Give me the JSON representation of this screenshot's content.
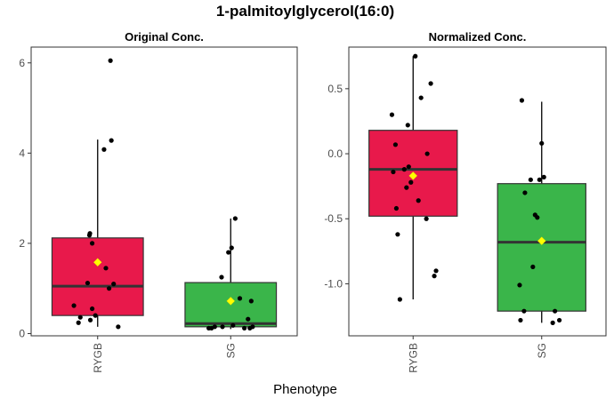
{
  "chart_data": {
    "type": "box",
    "title": "1-palmitoylglycerol(16:0)",
    "xlabel": "Phenotype",
    "colors": {
      "RYGB": "#E8194B",
      "SG": "#3AB54A",
      "mean_marker": "#FFFF00",
      "points": "#000000"
    },
    "panels": [
      {
        "title": "Original Conc.",
        "categories": [
          "RYGB",
          "SG"
        ],
        "ylim": [
          -0.05,
          6.35
        ],
        "yticks": [
          0,
          2,
          4,
          6
        ],
        "ytick_labels": [
          "0",
          "2",
          "4",
          "6"
        ],
        "boxes": [
          {
            "category": "RYGB",
            "q1": 0.4,
            "median": 1.05,
            "q3": 2.12,
            "whisker_low": 0.15,
            "whisker_high": 4.3,
            "mean": 1.58,
            "points": [
              [
                -0.52,
                0.62
              ],
              [
                -0.42,
                0.24
              ],
              [
                -0.38,
                0.36
              ],
              [
                -0.22,
                1.12
              ],
              [
                -0.16,
                0.3
              ],
              [
                -0.18,
                2.18
              ],
              [
                -0.17,
                2.22
              ],
              [
                -0.12,
                2.0
              ],
              [
                -0.12,
                0.55
              ],
              [
                -0.05,
                0.4
              ],
              [
                0.14,
                4.08
              ],
              [
                0.18,
                1.45
              ],
              [
                0.25,
                1.0
              ],
              [
                0.28,
                6.05
              ],
              [
                0.3,
                4.28
              ],
              [
                0.35,
                1.1
              ],
              [
                0.45,
                0.15
              ]
            ]
          },
          {
            "category": "SG",
            "q1": 0.15,
            "median": 0.22,
            "q3": 1.13,
            "whisker_low": 0.1,
            "whisker_high": 2.55,
            "mean": 0.72,
            "points": [
              [
                -0.48,
                0.12
              ],
              [
                -0.42,
                0.12
              ],
              [
                -0.35,
                0.15
              ],
              [
                -0.2,
                1.25
              ],
              [
                -0.18,
                0.15
              ],
              [
                -0.05,
                1.8
              ],
              [
                0.02,
                1.9
              ],
              [
                0.05,
                0.18
              ],
              [
                0.1,
                2.55
              ],
              [
                0.2,
                0.78
              ],
              [
                0.3,
                0.12
              ],
              [
                0.38,
                0.32
              ],
              [
                0.42,
                0.12
              ],
              [
                0.45,
                0.72
              ],
              [
                0.48,
                0.15
              ]
            ]
          }
        ]
      },
      {
        "title": "Normalized Conc.",
        "categories": [
          "RYGB",
          "SG"
        ],
        "ylim": [
          -1.4,
          0.82
        ],
        "yticks": [
          -1.0,
          -0.5,
          0.0,
          0.5
        ],
        "ytick_labels": [
          "-1.0",
          "-0.5",
          "0.0",
          "0.5"
        ],
        "boxes": [
          {
            "category": "RYGB",
            "q1": -0.48,
            "median": -0.12,
            "q3": 0.18,
            "whisker_low": -1.12,
            "whisker_high": 0.75,
            "mean": -0.17,
            "points": [
              [
                -0.48,
                0.3
              ],
              [
                -0.45,
                -0.14
              ],
              [
                -0.4,
                0.07
              ],
              [
                -0.38,
                -0.42
              ],
              [
                -0.35,
                -0.62
              ],
              [
                -0.3,
                -1.12
              ],
              [
                -0.2,
                -0.12
              ],
              [
                -0.15,
                -0.26
              ],
              [
                -0.12,
                0.22
              ],
              [
                -0.1,
                -0.1
              ],
              [
                -0.05,
                -0.22
              ],
              [
                0.05,
                0.75
              ],
              [
                0.12,
                -0.36
              ],
              [
                0.18,
                0.43
              ],
              [
                0.3,
                -0.5
              ],
              [
                0.32,
                0.0
              ],
              [
                0.4,
                0.54
              ],
              [
                0.48,
                -0.94
              ],
              [
                0.52,
                -0.9
              ]
            ]
          },
          {
            "category": "SG",
            "q1": -1.21,
            "median": -0.68,
            "q3": -0.23,
            "whisker_low": -1.3,
            "whisker_high": 0.4,
            "mean": -0.67,
            "points": [
              [
                -0.5,
                -1.01
              ],
              [
                -0.48,
                -1.28
              ],
              [
                -0.45,
                0.41
              ],
              [
                -0.4,
                -1.21
              ],
              [
                -0.38,
                -0.3
              ],
              [
                -0.25,
                -0.2
              ],
              [
                -0.2,
                -0.87
              ],
              [
                -0.15,
                -0.47
              ],
              [
                -0.1,
                -0.49
              ],
              [
                -0.05,
                -0.2
              ],
              [
                0.0,
                0.08
              ],
              [
                0.05,
                -0.18
              ],
              [
                0.25,
                -1.3
              ],
              [
                0.3,
                -1.21
              ],
              [
                0.4,
                -1.28
              ]
            ]
          }
        ]
      }
    ]
  }
}
